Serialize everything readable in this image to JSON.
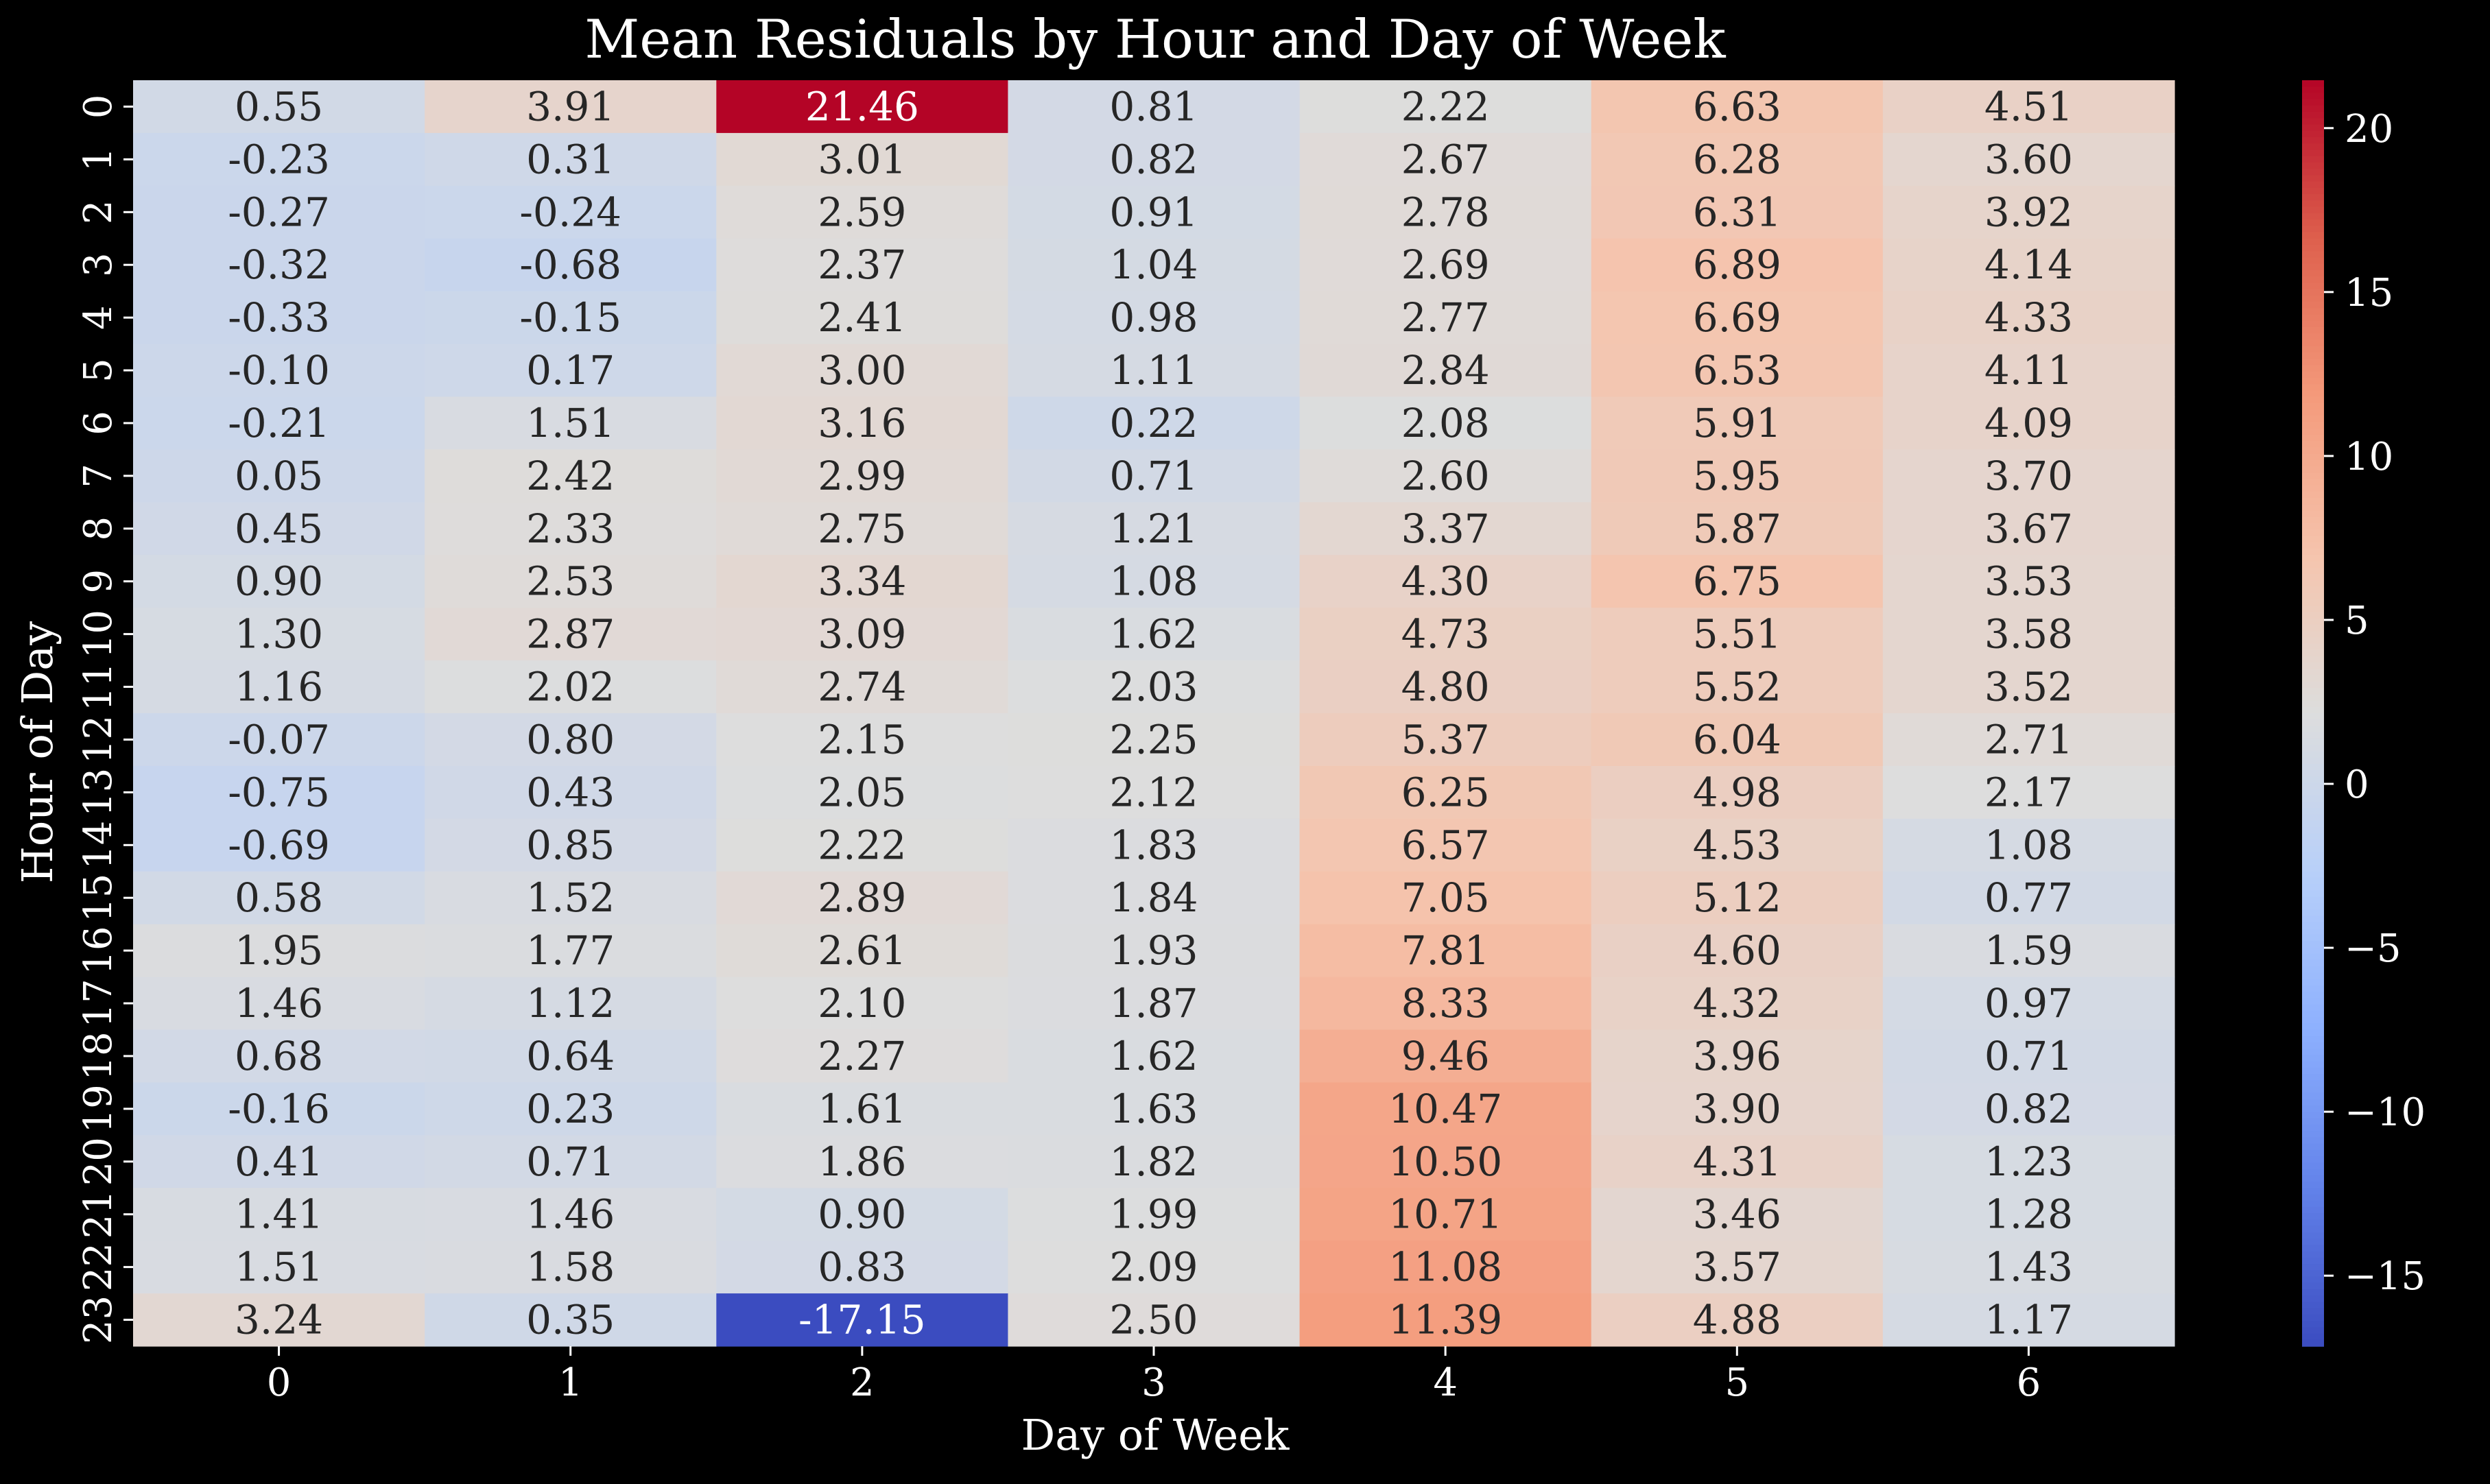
{
  "chart_data": {
    "type": "heatmap",
    "title": "Mean Residuals by Hour and Day of Week",
    "xlabel": "Day of Week",
    "ylabel": "Hour of Day",
    "x_categories": [
      "0",
      "1",
      "2",
      "3",
      "4",
      "5",
      "6"
    ],
    "y_categories": [
      "0",
      "1",
      "2",
      "3",
      "4",
      "5",
      "6",
      "7",
      "8",
      "9",
      "10",
      "11",
      "12",
      "13",
      "14",
      "15",
      "16",
      "17",
      "18",
      "19",
      "20",
      "21",
      "22",
      "23"
    ],
    "values": [
      [
        0.55,
        3.91,
        21.46,
        0.81,
        2.22,
        6.63,
        4.51
      ],
      [
        -0.23,
        0.31,
        3.01,
        0.82,
        2.67,
        6.28,
        3.6
      ],
      [
        -0.27,
        -0.24,
        2.59,
        0.91,
        2.78,
        6.31,
        3.92
      ],
      [
        -0.32,
        -0.68,
        2.37,
        1.04,
        2.69,
        6.89,
        4.14
      ],
      [
        -0.33,
        -0.15,
        2.41,
        0.98,
        2.77,
        6.69,
        4.33
      ],
      [
        -0.1,
        0.17,
        3.0,
        1.11,
        2.84,
        6.53,
        4.11
      ],
      [
        -0.21,
        1.51,
        3.16,
        0.22,
        2.08,
        5.91,
        4.09
      ],
      [
        0.05,
        2.42,
        2.99,
        0.71,
        2.6,
        5.95,
        3.7
      ],
      [
        0.45,
        2.33,
        2.75,
        1.21,
        3.37,
        5.87,
        3.67
      ],
      [
        0.9,
        2.53,
        3.34,
        1.08,
        4.3,
        6.75,
        3.53
      ],
      [
        1.3,
        2.87,
        3.09,
        1.62,
        4.73,
        5.51,
        3.58
      ],
      [
        1.16,
        2.02,
        2.74,
        2.03,
        4.8,
        5.52,
        3.52
      ],
      [
        -0.07,
        0.8,
        2.15,
        2.25,
        5.37,
        6.04,
        2.71
      ],
      [
        -0.75,
        0.43,
        2.05,
        2.12,
        6.25,
        4.98,
        2.17
      ],
      [
        -0.69,
        0.85,
        2.22,
        1.83,
        6.57,
        4.53,
        1.08
      ],
      [
        0.58,
        1.52,
        2.89,
        1.84,
        7.05,
        5.12,
        0.77
      ],
      [
        1.95,
        1.77,
        2.61,
        1.93,
        7.81,
        4.6,
        1.59
      ],
      [
        1.46,
        1.12,
        2.1,
        1.87,
        8.33,
        4.32,
        0.97
      ],
      [
        0.68,
        0.64,
        2.27,
        1.62,
        9.46,
        3.96,
        0.71
      ],
      [
        -0.16,
        0.23,
        1.61,
        1.63,
        10.47,
        3.9,
        0.82
      ],
      [
        0.41,
        0.71,
        1.86,
        1.82,
        10.5,
        4.31,
        1.23
      ],
      [
        1.41,
        1.46,
        0.9,
        1.99,
        10.71,
        3.46,
        1.28
      ],
      [
        1.51,
        1.58,
        0.83,
        2.09,
        11.08,
        3.57,
        1.43
      ],
      [
        3.24,
        0.35,
        -17.15,
        2.5,
        11.39,
        4.88,
        1.17
      ]
    ],
    "value_format": "2 decimals",
    "colormap": "coolwarm",
    "vmin": -17.15,
    "vmax": 21.46,
    "colorbar_ticks": [
      -15,
      -10,
      -5,
      0,
      5,
      10,
      15,
      20
    ],
    "colorbar_tick_labels": [
      "−15",
      "−10",
      "−5",
      "0",
      "5",
      "10",
      "15",
      "20"
    ],
    "background_color": "#000000",
    "text_color": "#ffffff"
  }
}
